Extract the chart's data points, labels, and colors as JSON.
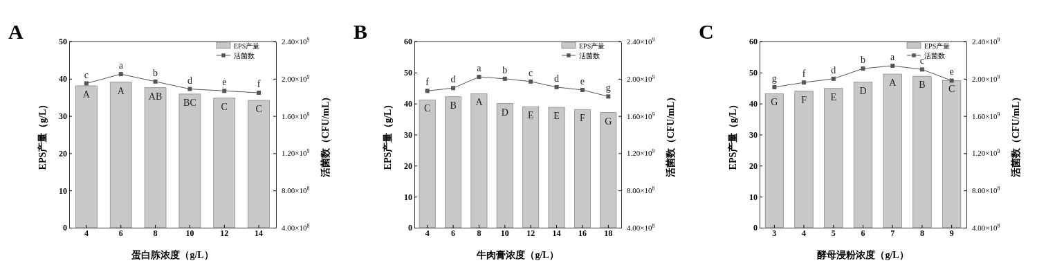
{
  "chart_data": [
    {
      "type": "bar",
      "title": "A",
      "xlabel": "蛋白胨浓度（g/L）",
      "ylabel": "EPS产量（g/L）",
      "y2label": "活菌数（CFU/mL）",
      "categories": [
        "4",
        "6",
        "8",
        "10",
        "12",
        "14"
      ],
      "ylim": [
        0,
        50
      ],
      "yticks": [
        0,
        10,
        20,
        30,
        40,
        50
      ],
      "y2lim": [
        400000000,
        2400000000
      ],
      "y2ticks": [
        {
          "value": 400000000,
          "label": "4.00×10$^{8}$"
        },
        {
          "value": 800000000,
          "label": "8.00×10$^{8}$"
        },
        {
          "value": 1200000000,
          "label": "1.20×10$^{9}$"
        },
        {
          "value": 1600000000,
          "label": "1.60×10$^{9}$"
        },
        {
          "value": 2000000000,
          "label": "2.00×10$^{9}$"
        },
        {
          "value": 2400000000,
          "label": "2.40×10$^{9}$"
        }
      ],
      "series": [
        {
          "name": "EPS产量",
          "color": "#c8c8c8",
          "values": [
            38.1,
            39.1,
            37.6,
            35.9,
            34.8,
            34.2
          ],
          "value_labels": [
            "A",
            "A",
            "AB",
            "BC",
            "C",
            "C"
          ]
        },
        {
          "name": "活菌数",
          "type": "line",
          "axis": "y2",
          "color": "#555555",
          "values": [
            1950000000,
            2050000000,
            1970000000,
            1890000000,
            1870000000,
            1850000000
          ],
          "value_labels": [
            "c",
            "a",
            "b",
            "d",
            "e",
            "f"
          ]
        }
      ],
      "legend": "top right",
      "marker": "square",
      "grid": false
    },
    {
      "type": "bar",
      "title": "B",
      "xlabel": "牛肉膏浓度（g/L）",
      "ylabel": "EPS产量（g/L）",
      "y2label": "活菌数（CFU/mL）",
      "categories": [
        "4",
        "6",
        "8",
        "10",
        "12",
        "14",
        "16",
        "18"
      ],
      "ylim": [
        0,
        60
      ],
      "yticks": [
        0,
        10,
        20,
        30,
        40,
        50,
        60
      ],
      "y2lim": [
        400000000,
        2400000000
      ],
      "y2ticks": [
        {
          "value": 400000000,
          "label": "4.00×10$^{8}$"
        },
        {
          "value": 800000000,
          "label": "8.00×10$^{8}$"
        },
        {
          "value": 1200000000,
          "label": "1.20×10$^{9}$"
        },
        {
          "value": 1600000000,
          "label": "1.60×10$^{9}$"
        },
        {
          "value": 2000000000,
          "label": "2.00×10$^{9}$"
        },
        {
          "value": 2400000000,
          "label": "2.40×10$^{9}$"
        }
      ],
      "series": [
        {
          "name": "EPS产量",
          "color": "#c8c8c8",
          "values": [
            41.2,
            42.2,
            43.2,
            40.0,
            39.0,
            38.8,
            38.1,
            37.1
          ],
          "value_labels": [
            "C",
            "B",
            "A",
            "D",
            "E",
            "E",
            "F",
            "G"
          ]
        },
        {
          "name": "活菌数",
          "type": "line",
          "axis": "y2",
          "color": "#555555",
          "values": [
            1870000000,
            1900000000,
            2020000000,
            2000000000,
            1970000000,
            1910000000,
            1880000000,
            1810000000
          ],
          "value_labels": [
            "f",
            "d",
            "a",
            "b",
            "c",
            "d",
            "e",
            "g"
          ]
        }
      ],
      "legend": "top right",
      "marker": "square",
      "grid": false
    },
    {
      "type": "bar",
      "title": "C",
      "xlabel": "酵母浸粉浓度（g/L）",
      "ylabel": "EPS产量（g/L）",
      "y2label": "活菌数（CFU/mL）",
      "categories": [
        "3",
        "4",
        "5",
        "6",
        "7",
        "8",
        "9"
      ],
      "ylim": [
        0,
        60
      ],
      "yticks": [
        0,
        10,
        20,
        30,
        40,
        50,
        60
      ],
      "y2lim": [
        400000000,
        2400000000
      ],
      "y2ticks": [
        {
          "value": 400000000,
          "label": "4.00×10$^{8}$"
        },
        {
          "value": 800000000,
          "label": "8.00×10$^{8}$"
        },
        {
          "value": 1200000000,
          "label": "1.20×10$^{9}$"
        },
        {
          "value": 1600000000,
          "label": "1.60×10$^{9}$"
        },
        {
          "value": 2000000000,
          "label": "2.00×10$^{9}$"
        },
        {
          "value": 2400000000,
          "label": "2.40×10$^{9}$"
        }
      ],
      "series": [
        {
          "name": "EPS产量",
          "color": "#c8c8c8",
          "values": [
            43.2,
            44.0,
            44.9,
            46.9,
            49.5,
            48.8,
            47.4
          ],
          "value_labels": [
            "G",
            "F",
            "E",
            "D",
            "A",
            "B",
            "C"
          ]
        },
        {
          "name": "活菌数",
          "type": "line",
          "axis": "y2",
          "color": "#555555",
          "values": [
            1910000000,
            1960000000,
            2000000000,
            2110000000,
            2140000000,
            2100000000,
            1980000000
          ],
          "value_labels": [
            "g",
            "f",
            "d",
            "b",
            "a",
            "c",
            "e"
          ]
        }
      ],
      "legend": "top right",
      "marker": "square",
      "grid": false
    }
  ]
}
